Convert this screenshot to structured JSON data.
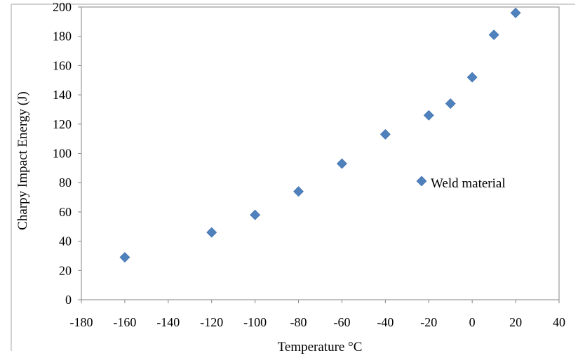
{
  "colors": {
    "marker": "#4f81bd",
    "axis": "#868686",
    "frame": "#a6a6a6"
  },
  "chart_data": {
    "type": "scatter",
    "xlabel": "Temperature °C",
    "ylabel": "Charpy Impact Energy (J)",
    "xlim": [
      -180,
      40
    ],
    "ylim": [
      0,
      200
    ],
    "x_ticks": [
      "-180",
      "-160",
      "-140",
      "-120",
      "-100",
      "-80",
      "-60",
      "-40",
      "-20",
      "0",
      "20",
      "40"
    ],
    "y_ticks": [
      "0",
      "20",
      "40",
      "60",
      "80",
      "100",
      "120",
      "140",
      "160",
      "180",
      "200"
    ],
    "grid": false,
    "legend_position": "center-right",
    "series": [
      {
        "name": "Weld material",
        "marker": "diamond",
        "x": [
          -160,
          -120,
          -100,
          -80,
          -60,
          -40,
          -20,
          -10,
          0,
          10,
          20
        ],
        "y": [
          29,
          46,
          58,
          74,
          93,
          113,
          126,
          134,
          152,
          181,
          196
        ]
      }
    ]
  }
}
